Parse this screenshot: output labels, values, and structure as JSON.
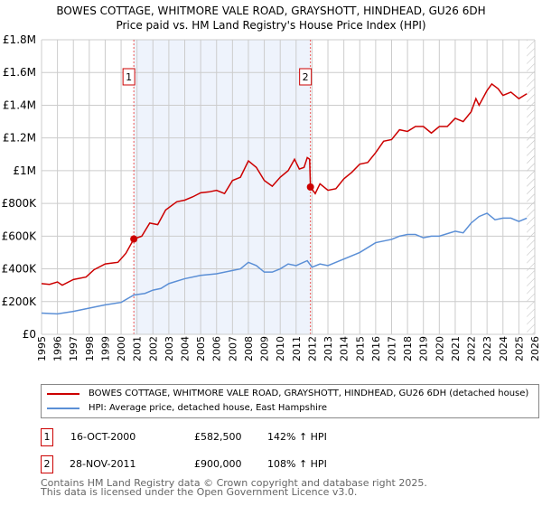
{
  "chart_data": {
    "type": "line",
    "title": "BOWES COTTAGE, WHITMORE VALE ROAD, GRAYSHOTT, HINDHEAD, GU26 6DH",
    "subtitle": "Price paid vs. HM Land Registry's House Price Index (HPI)",
    "xlim": [
      1995,
      2026
    ],
    "ylim": [
      0,
      1800000
    ],
    "x_ticks": [
      "1995",
      "1996",
      "1997",
      "1998",
      "1999",
      "2000",
      "2001",
      "2002",
      "2003",
      "2004",
      "2005",
      "2006",
      "2007",
      "2008",
      "2009",
      "2010",
      "2011",
      "2012",
      "2013",
      "2014",
      "2015",
      "2016",
      "2017",
      "2018",
      "2019",
      "2020",
      "2021",
      "2022",
      "2023",
      "2024",
      "2025",
      "2026"
    ],
    "y_ticks": [
      {
        "v": 0,
        "l": "£0"
      },
      {
        "v": 200000,
        "l": "£200K"
      },
      {
        "v": 400000,
        "l": "£400K"
      },
      {
        "v": 600000,
        "l": "£600K"
      },
      {
        "v": 800000,
        "l": "£800K"
      },
      {
        "v": 1000000,
        "l": "£1M"
      },
      {
        "v": 1200000,
        "l": "£1.2M"
      },
      {
        "v": 1400000,
        "l": "£1.4M"
      },
      {
        "v": 1600000,
        "l": "£1.6M"
      },
      {
        "v": 1800000,
        "l": "£1.8M"
      }
    ],
    "grid": true,
    "shaded_range": [
      2000.8,
      2011.9
    ],
    "hatched_from": 2025.5,
    "series": [
      {
        "name": "BOWES COTTAGE, WHITMORE VALE ROAD, GRAYSHOTT, HINDHEAD, GU26 6DH (detached house)",
        "color": "#cc0000",
        "points": [
          [
            1995,
            310
          ],
          [
            1995.5,
            305
          ],
          [
            1996,
            320
          ],
          [
            1996.3,
            300
          ],
          [
            1997,
            335
          ],
          [
            1997.8,
            350
          ],
          [
            1998.3,
            395
          ],
          [
            1999,
            430
          ],
          [
            1999.8,
            440
          ],
          [
            2000.3,
            495
          ],
          [
            2000.8,
            582.5
          ],
          [
            2001.3,
            600
          ],
          [
            2001.8,
            680
          ],
          [
            2002.3,
            670
          ],
          [
            2002.8,
            760
          ],
          [
            2003.5,
            810
          ],
          [
            2004,
            820
          ],
          [
            2004.5,
            840
          ],
          [
            2005,
            865
          ],
          [
            2005.5,
            870
          ],
          [
            2006,
            880
          ],
          [
            2006.5,
            860
          ],
          [
            2007,
            940
          ],
          [
            2007.5,
            960
          ],
          [
            2008,
            1060
          ],
          [
            2008.5,
            1020
          ],
          [
            2009,
            940
          ],
          [
            2009.5,
            905
          ],
          [
            2010,
            960
          ],
          [
            2010.5,
            1000
          ],
          [
            2010.9,
            1070
          ],
          [
            2011.2,
            1010
          ],
          [
            2011.5,
            1020
          ],
          [
            2011.7,
            1080
          ],
          [
            2011.85,
            1070
          ],
          [
            2011.9,
            900
          ],
          [
            2012.2,
            860
          ],
          [
            2012.5,
            920
          ],
          [
            2013,
            880
          ],
          [
            2013.5,
            890
          ],
          [
            2014,
            950
          ],
          [
            2014.5,
            990
          ],
          [
            2015,
            1040
          ],
          [
            2015.5,
            1050
          ],
          [
            2016,
            1110
          ],
          [
            2016.5,
            1180
          ],
          [
            2017,
            1190
          ],
          [
            2017.5,
            1250
          ],
          [
            2018,
            1240
          ],
          [
            2018.5,
            1270
          ],
          [
            2019,
            1270
          ],
          [
            2019.5,
            1230
          ],
          [
            2020,
            1270
          ],
          [
            2020.5,
            1270
          ],
          [
            2021,
            1320
          ],
          [
            2021.5,
            1300
          ],
          [
            2022,
            1360
          ],
          [
            2022.3,
            1440
          ],
          [
            2022.5,
            1400
          ],
          [
            2023,
            1490
          ],
          [
            2023.3,
            1530
          ],
          [
            2023.7,
            1500
          ],
          [
            2024,
            1460
          ],
          [
            2024.5,
            1480
          ],
          [
            2025,
            1440
          ],
          [
            2025.5,
            1470
          ]
        ]
      },
      {
        "name": "HPI: Average price, detached house, East Hampshire",
        "color": "#5b8fd6",
        "points": [
          [
            1995,
            130
          ],
          [
            1996,
            125
          ],
          [
            1997,
            140
          ],
          [
            1998,
            160
          ],
          [
            1999,
            180
          ],
          [
            2000,
            195
          ],
          [
            2000.8,
            240
          ],
          [
            2001.5,
            250
          ],
          [
            2002,
            270
          ],
          [
            2002.5,
            280
          ],
          [
            2003,
            310
          ],
          [
            2004,
            340
          ],
          [
            2005,
            360
          ],
          [
            2006,
            370
          ],
          [
            2007,
            390
          ],
          [
            2007.5,
            400
          ],
          [
            2008,
            440
          ],
          [
            2008.5,
            420
          ],
          [
            2009,
            380
          ],
          [
            2009.5,
            380
          ],
          [
            2010,
            400
          ],
          [
            2010.5,
            430
          ],
          [
            2011,
            420
          ],
          [
            2011.7,
            450
          ],
          [
            2012,
            410
          ],
          [
            2012.5,
            430
          ],
          [
            2013,
            420
          ],
          [
            2013.5,
            440
          ],
          [
            2014,
            460
          ],
          [
            2015,
            500
          ],
          [
            2016,
            560
          ],
          [
            2017,
            580
          ],
          [
            2017.5,
            600
          ],
          [
            2018,
            610
          ],
          [
            2018.5,
            610
          ],
          [
            2019,
            590
          ],
          [
            2019.5,
            600
          ],
          [
            2020,
            600
          ],
          [
            2021,
            630
          ],
          [
            2021.5,
            620
          ],
          [
            2022,
            680
          ],
          [
            2022.5,
            720
          ],
          [
            2023,
            740
          ],
          [
            2023.5,
            700
          ],
          [
            2024,
            710
          ],
          [
            2024.5,
            710
          ],
          [
            2025,
            690
          ],
          [
            2025.5,
            710
          ]
        ]
      }
    ],
    "annotations": [
      {
        "label": "1",
        "x": 2000.8,
        "y": 582500
      },
      {
        "label": "2",
        "x": 2011.9,
        "y": 900000
      }
    ]
  },
  "legend": {
    "red": "BOWES COTTAGE, WHITMORE VALE ROAD, GRAYSHOTT, HINDHEAD, GU26 6DH (detached house)",
    "blue": "HPI: Average price, detached house, East Hampshire"
  },
  "sales": [
    {
      "num": "1",
      "date": "16-OCT-2000",
      "price": "£582,500",
      "hpi": "142% ↑ HPI"
    },
    {
      "num": "2",
      "date": "28-NOV-2011",
      "price": "£900,000",
      "hpi": "108% ↑ HPI"
    }
  ],
  "footer": {
    "line1": "Contains HM Land Registry data © Crown copyright and database right 2025.",
    "line2": "This data is licensed under the Open Government Licence v3.0."
  }
}
